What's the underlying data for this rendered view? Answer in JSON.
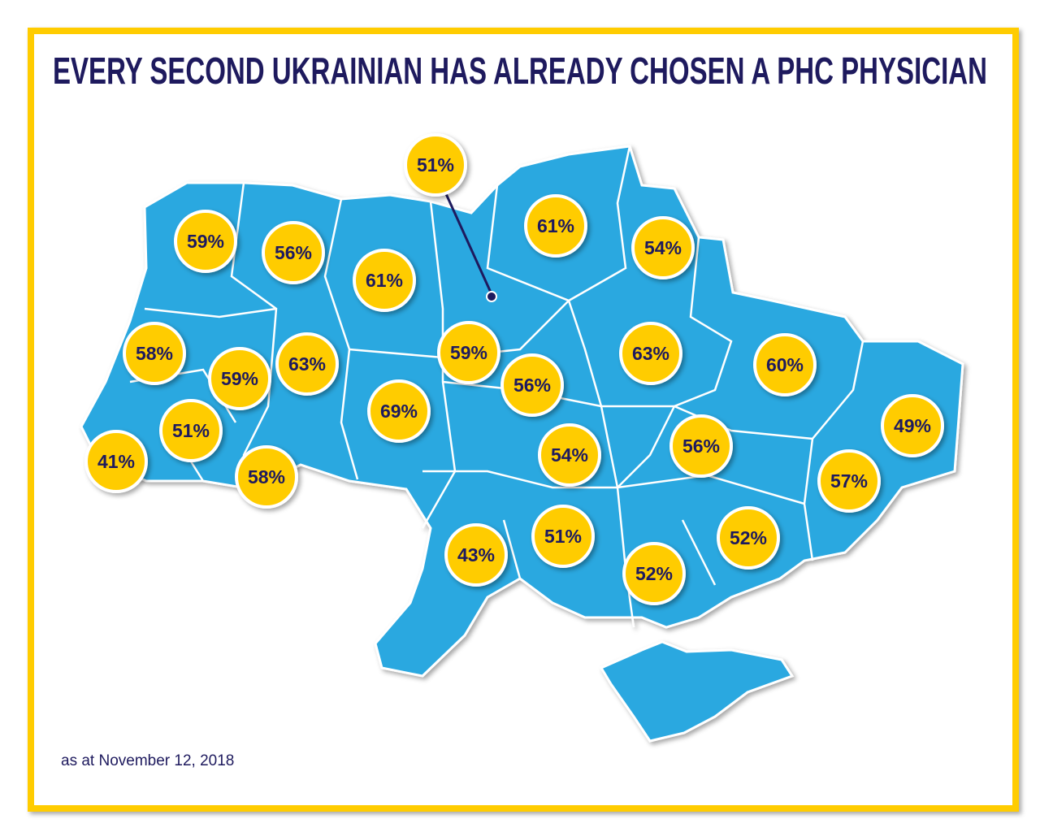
{
  "header": {
    "title": "EVERY SECOND UKRAINIAN HAS ALREADY CHOSEN A PHC PHYSICIAN"
  },
  "regions": [
    {
      "label": "59%"
    },
    {
      "label": "56%"
    },
    {
      "label": "61%"
    },
    {
      "label": "61%"
    },
    {
      "label": "54%"
    },
    {
      "label": "58%"
    },
    {
      "label": "59%"
    },
    {
      "label": "63%"
    },
    {
      "label": "59%"
    },
    {
      "label": "56%"
    },
    {
      "label": "63%"
    },
    {
      "label": "60%"
    },
    {
      "label": "69%"
    },
    {
      "label": "51%"
    },
    {
      "label": "41%"
    },
    {
      "label": "58%"
    },
    {
      "label": "54%"
    },
    {
      "label": "56%"
    },
    {
      "label": "49%"
    },
    {
      "label": "57%"
    },
    {
      "label": "43%"
    },
    {
      "label": "51%"
    },
    {
      "label": "52%"
    },
    {
      "label": "52%"
    },
    {
      "label": "51%"
    }
  ],
  "footnote": "as at November 12, 2018"
}
